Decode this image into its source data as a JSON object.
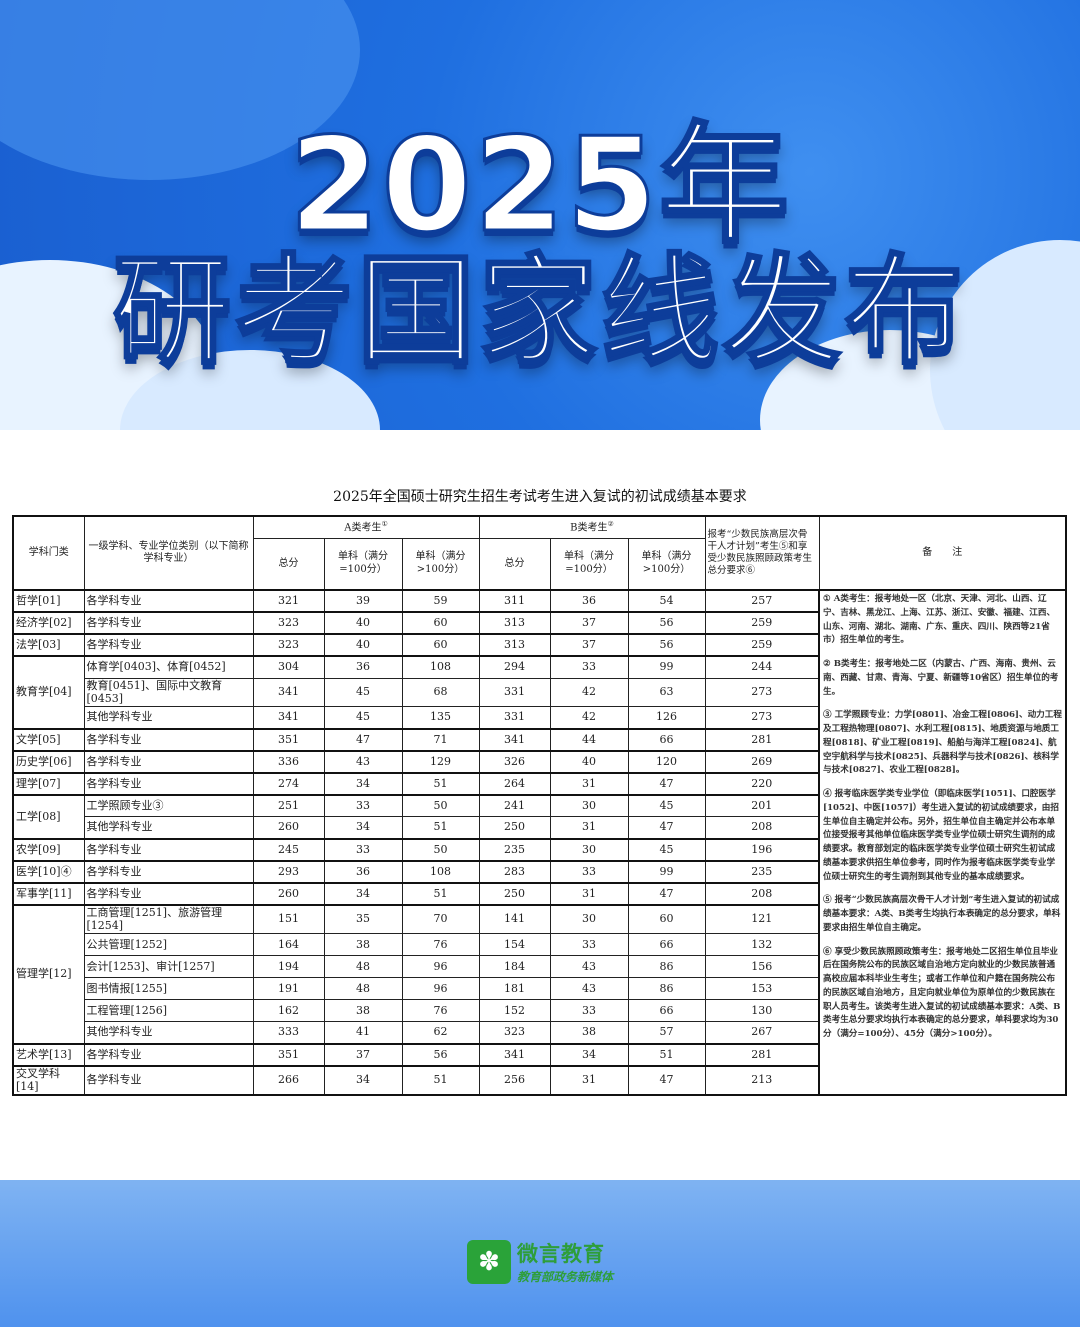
{
  "banner": {
    "title_line1": "2025年",
    "title_line2": "研考国家线发布"
  },
  "document": {
    "title": "2025年全国硕士研究生招生考试考生进入复试的初试成绩基本要求"
  },
  "table": {
    "headers": {
      "category": "学科门类",
      "subject": "一级学科、专业学位类别（以下简称学科专业）",
      "group_a": "A类考生",
      "group_a_note": "①",
      "group_b": "B类考生",
      "group_b_note": "②",
      "total": "总分",
      "single_100": "单科（满分=100分）",
      "single_over100": "单科（满分>100分）",
      "minority": "报考“少数民族高层次骨干人才计划”考生⑤和享受少数民族照顾政策考生总分要求⑥",
      "remarks": "备　　注"
    },
    "groups": [
      {
        "category": "哲学[01]",
        "rows": [
          [
            "各学科专业",
            "321",
            "39",
            "59",
            "311",
            "36",
            "54",
            "257"
          ]
        ]
      },
      {
        "category": "经济学[02]",
        "rows": [
          [
            "各学科专业",
            "323",
            "40",
            "60",
            "313",
            "37",
            "56",
            "259"
          ]
        ]
      },
      {
        "category": "法学[03]",
        "rows": [
          [
            "各学科专业",
            "323",
            "40",
            "60",
            "313",
            "37",
            "56",
            "259"
          ]
        ]
      },
      {
        "category": "教育学[04]",
        "rows": [
          [
            "体育学[0403]、体育[0452]",
            "304",
            "36",
            "108",
            "294",
            "33",
            "99",
            "244"
          ],
          [
            "教育[0451]、国际中文教育[0453]",
            "341",
            "45",
            "68",
            "331",
            "42",
            "63",
            "273"
          ],
          [
            "其他学科专业",
            "341",
            "45",
            "135",
            "331",
            "42",
            "126",
            "273"
          ]
        ]
      },
      {
        "category": "文学[05]",
        "rows": [
          [
            "各学科专业",
            "351",
            "47",
            "71",
            "341",
            "44",
            "66",
            "281"
          ]
        ]
      },
      {
        "category": "历史学[06]",
        "rows": [
          [
            "各学科专业",
            "336",
            "43",
            "129",
            "326",
            "40",
            "120",
            "269"
          ]
        ]
      },
      {
        "category": "理学[07]",
        "rows": [
          [
            "各学科专业",
            "274",
            "34",
            "51",
            "264",
            "31",
            "47",
            "220"
          ]
        ]
      },
      {
        "category": "工学[08]",
        "rows": [
          [
            "工学照顾专业③",
            "251",
            "33",
            "50",
            "241",
            "30",
            "45",
            "201"
          ],
          [
            "其他学科专业",
            "260",
            "34",
            "51",
            "250",
            "31",
            "47",
            "208"
          ]
        ]
      },
      {
        "category": "农学[09]",
        "rows": [
          [
            "各学科专业",
            "245",
            "33",
            "50",
            "235",
            "30",
            "45",
            "196"
          ]
        ]
      },
      {
        "category": "医学[10]④",
        "rows": [
          [
            "各学科专业",
            "293",
            "36",
            "108",
            "283",
            "33",
            "99",
            "235"
          ]
        ]
      },
      {
        "category": "军事学[11]",
        "rows": [
          [
            "各学科专业",
            "260",
            "34",
            "51",
            "250",
            "31",
            "47",
            "208"
          ]
        ]
      },
      {
        "category": "管理学[12]",
        "rows": [
          [
            "工商管理[1251]、旅游管理[1254]",
            "151",
            "35",
            "70",
            "141",
            "30",
            "60",
            "121"
          ],
          [
            "公共管理[1252]",
            "164",
            "38",
            "76",
            "154",
            "33",
            "66",
            "132"
          ],
          [
            "会计[1253]、审计[1257]",
            "194",
            "48",
            "96",
            "184",
            "43",
            "86",
            "156"
          ],
          [
            "图书情报[1255]",
            "191",
            "48",
            "96",
            "181",
            "43",
            "86",
            "153"
          ],
          [
            "工程管理[1256]",
            "162",
            "38",
            "76",
            "152",
            "33",
            "66",
            "130"
          ],
          [
            "其他学科专业",
            "333",
            "41",
            "62",
            "323",
            "38",
            "57",
            "267"
          ]
        ]
      },
      {
        "category": "艺术学[13]",
        "rows": [
          [
            "各学科专业",
            "351",
            "37",
            "56",
            "341",
            "34",
            "51",
            "281"
          ]
        ]
      },
      {
        "category": "交叉学科[14]",
        "rows": [
          [
            "各学科专业",
            "266",
            "34",
            "51",
            "256",
            "31",
            "47",
            "213"
          ]
        ]
      }
    ],
    "remarks": [
      "① A类考生：报考地处一区（北京、天津、河北、山西、辽宁、吉林、黑龙江、上海、江苏、浙江、安徽、福建、江西、山东、河南、湖北、湖南、广东、重庆、四川、陕西等21省市）招生单位的考生。",
      "② B类考生：报考地处二区（内蒙古、广西、海南、贵州、云南、西藏、甘肃、青海、宁夏、新疆等10省区）招生单位的考生。",
      "③ 工学照顾专业：力学[0801]、冶金工程[0806]、动力工程及工程热物理[0807]、水利工程[0815]、地质资源与地质工程[0818]、矿业工程[0819]、船舶与海洋工程[0824]、航空宇航科学与技术[0825]、兵器科学与技术[0826]、核科学与技术[0827]、农业工程[0828]。",
      "④ 报考临床医学类专业学位（即临床医学[1051]、口腔医学[1052]、中医[1057]）考生进入复试的初试成绩要求，由招生单位自主确定并公布。另外，招生单位自主确定并公布本单位接受报考其他单位临床医学类专业学位硕士研究生调剂的成绩要求。教育部划定的临床医学类专业学位硕士研究生初试成绩基本要求供招生单位参考，同时作为报考临床医学类专业学位硕士研究生的考生调剂到其他专业的基本成绩要求。",
      "⑤ 报考“少数民族高层次骨干人才计划”考生进入复试的初试成绩基本要求：A类、B类考生均执行本表确定的总分要求，单科要求由招生单位自主确定。",
      "⑥ 享受少数民族照顾政策考生：报考地处二区招生单位且毕业后在国务院公布的民族区域自治地方定向就业的少数民族普通高校应届本科毕业生考生；或者工作单位和户籍在国务院公布的民族区域自治地方，且定向就业单位为原单位的少数民族在职人员考生。该类考生进入复试的初试成绩基本要求：A类、B类考生总分要求均执行本表确定的总分要求，单科要求均为30分（满分=100分）、45分（满分>100分）。"
    ]
  },
  "footer": {
    "logo_name": "微言教育",
    "logo_tagline": "教育部政务新媒体"
  },
  "colors": {
    "banner_blue": "#1f6fe0",
    "logo_green": "#2aa339"
  }
}
